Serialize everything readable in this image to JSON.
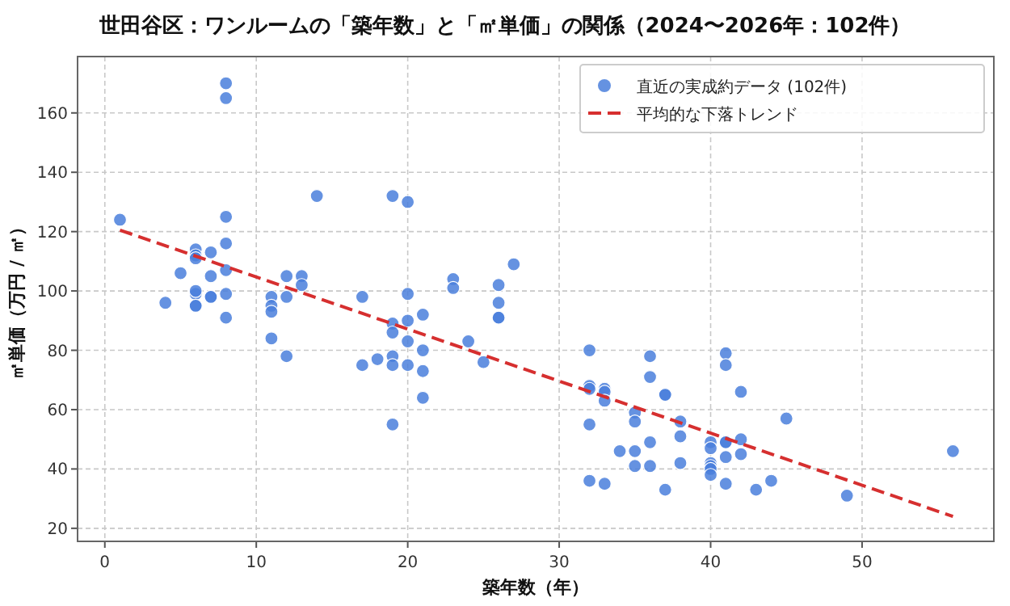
{
  "chart_data": {
    "type": "scatter",
    "title": "世田谷区：ワンルームの「築年数」と「㎡単価」の関係（2024〜2026年：102件）",
    "xlabel": "築年数（年）",
    "ylabel": "㎡単価（万円 / ㎡）",
    "xlim": [
      -1.8,
      58.7
    ],
    "ylim": [
      15.6,
      179
    ],
    "xticks": [
      0,
      10,
      20,
      30,
      40,
      50
    ],
    "yticks": [
      20,
      40,
      60,
      80,
      100,
      120,
      140,
      160
    ],
    "grid": true,
    "legend": "top right",
    "series": [
      {
        "name": "直近の実成約データ (102件)",
        "marker": "circle",
        "color": "#4a7fdc",
        "x": [
          1,
          4,
          5,
          6,
          6,
          6,
          6,
          6,
          6,
          6,
          7,
          7,
          7,
          7,
          8,
          8,
          8,
          8,
          8,
          8,
          8,
          11,
          11,
          11,
          11,
          12,
          12,
          12,
          13,
          13,
          14,
          17,
          17,
          18,
          19,
          19,
          19,
          19,
          19,
          19,
          20,
          20,
          20,
          20,
          20,
          21,
          21,
          21,
          21,
          23,
          23,
          24,
          25,
          26,
          26,
          26,
          26,
          27,
          32,
          32,
          32,
          32,
          32,
          33,
          33,
          33,
          33,
          34,
          35,
          35,
          35,
          35,
          36,
          36,
          36,
          36,
          37,
          37,
          37,
          38,
          38,
          38,
          40,
          40,
          40,
          40,
          40,
          40,
          41,
          41,
          41,
          41,
          41,
          41,
          42,
          42,
          42,
          43,
          44,
          45,
          49,
          56
        ],
        "values": [
          124,
          96,
          106,
          114,
          112,
          111,
          99,
          100,
          95,
          95,
          113,
          105,
          98,
          98,
          170,
          165,
          125,
          116,
          107,
          99,
          91,
          98,
          95,
          93,
          84,
          105,
          98,
          78,
          105,
          102,
          132,
          98,
          75,
          77,
          132,
          89,
          86,
          78,
          75,
          55,
          130,
          99,
          90,
          83,
          75,
          92,
          80,
          73,
          64,
          104,
          101,
          83,
          76,
          102,
          96,
          91,
          91,
          109,
          80,
          68,
          67,
          55,
          36,
          67,
          66,
          63,
          35,
          46,
          59,
          56,
          46,
          41,
          78,
          71,
          49,
          41,
          65,
          65,
          33,
          56,
          51,
          42,
          49,
          47,
          42,
          41,
          40,
          38,
          79,
          75,
          49,
          49,
          44,
          35,
          66,
          50,
          45,
          33,
          36,
          57,
          31,
          46
        ]
      },
      {
        "name": "平均的な下落トレンド",
        "type": "line",
        "marker": "none",
        "line_style": "dashed",
        "color": "#d62f2f",
        "x": [
          1,
          56
        ],
        "values": [
          120.5,
          24
        ]
      }
    ]
  }
}
